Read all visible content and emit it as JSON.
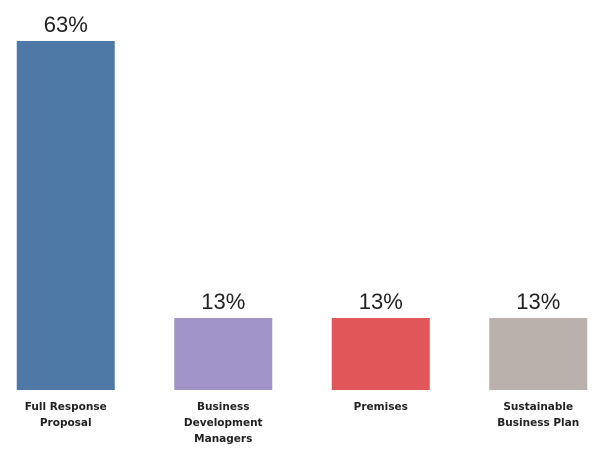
{
  "chart_data": {
    "type": "bar",
    "categories": [
      [
        "Full Response",
        "Proposal"
      ],
      [
        "Business",
        "Development",
        "Managers"
      ],
      [
        "Premises"
      ],
      [
        "Sustainable",
        "Business Plan"
      ]
    ],
    "values": [
      63,
      13,
      13,
      13
    ],
    "value_labels": [
      "63%",
      "13%",
      "13%",
      "13%"
    ],
    "colors": [
      "#4e79a7",
      "#a094c9",
      "#e15759",
      "#bab0ac"
    ],
    "ylim": [
      0,
      63
    ],
    "grid": false,
    "title": "",
    "xlabel": "",
    "ylabel": ""
  }
}
